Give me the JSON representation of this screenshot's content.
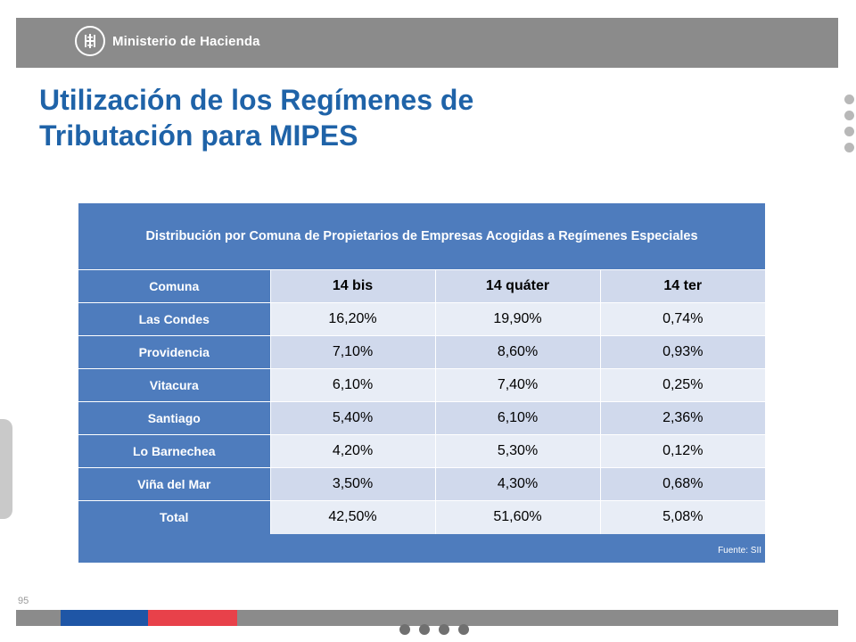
{
  "header": {
    "ministry_name": "Ministerio de Hacienda",
    "logo_icon": "ministry-emblem-icon"
  },
  "slide": {
    "title_line1": "Utilización de los Regímenes de",
    "title_line2": "Tributación para MIPES",
    "page_number": "95"
  },
  "table": {
    "caption": "Distribución por Comuna de Propietarios de Empresas Acogidas a Regímenes Especiales",
    "headers": [
      "Comuna",
      "14 bis",
      "14 quáter",
      "14 ter"
    ],
    "rows": [
      {
        "comuna": "Las Condes",
        "bis14": "16,20%",
        "quater14": "19,90%",
        "ter14": "0,74%"
      },
      {
        "comuna": "Providencia",
        "bis14": "7,10%",
        "quater14": "8,60%",
        "ter14": "0,93%"
      },
      {
        "comuna": "Vitacura",
        "bis14": "6,10%",
        "quater14": "7,40%",
        "ter14": "0,25%"
      },
      {
        "comuna": "Santiago",
        "bis14": "5,40%",
        "quater14": "6,10%",
        "ter14": "2,36%"
      },
      {
        "comuna": "Lo Barnechea",
        "bis14": "4,20%",
        "quater14": "5,30%",
        "ter14": "0,12%"
      },
      {
        "comuna": "Viña del Mar",
        "bis14": "3,50%",
        "quater14": "4,30%",
        "ter14": "0,68%"
      },
      {
        "comuna": "Total",
        "bis14": "42,50%",
        "quater14": "51,60%",
        "ter14": "5,08%"
      }
    ],
    "source": "Fuente: SII"
  },
  "colors": {
    "title": "#1f63a8",
    "panel": "#4e7cbd",
    "band_light": "#e8edf6",
    "band_dark": "#d0d9ec",
    "header_gray": "#8b8b8b",
    "stripe_blue": "#1f56a6",
    "stripe_red": "#e8414a"
  }
}
